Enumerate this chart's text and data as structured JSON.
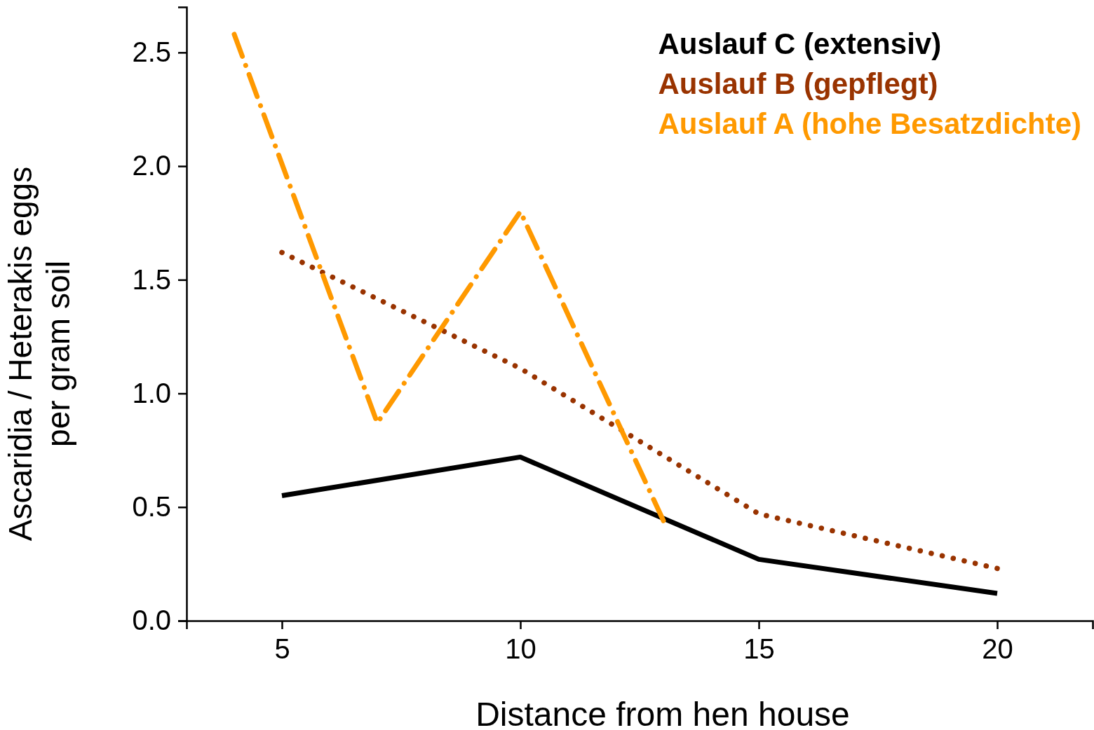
{
  "chart_data": {
    "type": "line",
    "xlabel": "Distance from hen house",
    "ylabel": "Ascaridia / Heterakis eggs\nper gram soil",
    "xlim": [
      3,
      22
    ],
    "xticks": [
      5,
      10,
      15,
      20
    ],
    "ylim": [
      0,
      2.7
    ],
    "yticks": [
      {
        "value": 0,
        "label": "0.0"
      },
      0.5,
      {
        "value": 1,
        "label": "1.0"
      },
      1.5,
      {
        "value": 2,
        "label": "2.0"
      },
      2.5
    ],
    "legend": "top right",
    "grid": false,
    "series": [
      {
        "name": "Auslauf C (extensiv)",
        "color": "#000000",
        "line_style": "solid",
        "x": [
          5,
          10,
          15,
          20
        ],
        "values": [
          0.55,
          0.72,
          0.27,
          0.12
        ]
      },
      {
        "name": "Auslauf B (gepflegt)",
        "color": "#993300",
        "line_style": "dotted",
        "x": [
          5,
          10,
          15,
          20
        ],
        "values": [
          1.62,
          1.11,
          0.47,
          0.23
        ]
      },
      {
        "name": "Auslauf A (hohe Besatzdichte)",
        "color": "#ff9900",
        "line_style": "dashdot",
        "x": [
          4,
          7,
          10,
          13
        ],
        "values": [
          2.58,
          0.87,
          1.8,
          0.44
        ]
      }
    ]
  }
}
